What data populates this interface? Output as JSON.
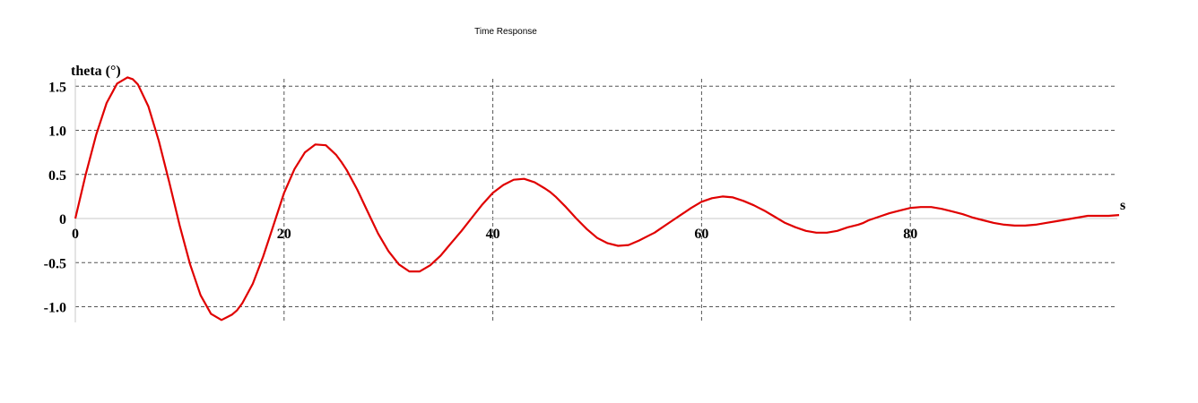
{
  "chart_data": {
    "type": "line",
    "title": "Time Response",
    "ylabel": "theta (°)",
    "xlabel": "s",
    "xlim": [
      0,
      100
    ],
    "ylim": [
      -1.15,
      1.6
    ],
    "x_ticks": [
      0,
      20,
      40,
      60,
      80
    ],
    "x_tick_labels": [
      "0",
      "20",
      "40",
      "60",
      "80"
    ],
    "y_ticks": [
      1.5,
      1.0,
      0.5,
      0,
      -0.5,
      -1.0
    ],
    "y_tick_labels": [
      "1.5",
      "1.0",
      "0.5",
      "0",
      "-0.5",
      "-1.0"
    ],
    "grid": true,
    "series": [
      {
        "color": "#e00000",
        "x": [
          0,
          1,
          2,
          3,
          4,
          5,
          5.5,
          6,
          7,
          8,
          9,
          10,
          11,
          12,
          13,
          14,
          15,
          15.5,
          16,
          17,
          18,
          19,
          20,
          21,
          22,
          23,
          24,
          25,
          25.5,
          26,
          27,
          28,
          29,
          30,
          31,
          32,
          33,
          34,
          35,
          35.5,
          36,
          37,
          38,
          39,
          40,
          41,
          42,
          43,
          44,
          45,
          45.5,
          46,
          47,
          48,
          49,
          50,
          51,
          52,
          53,
          54,
          55,
          55.5,
          56,
          57,
          58,
          59,
          60,
          61,
          62,
          63,
          64,
          65,
          65.5,
          66,
          67,
          68,
          69,
          70,
          71,
          72,
          73,
          74,
          75,
          75.5,
          76,
          77,
          78,
          79,
          80,
          81,
          82,
          83,
          84,
          85,
          85.5,
          86,
          87,
          88,
          89,
          90,
          91,
          92,
          93,
          94,
          95,
          95.5,
          96,
          97,
          98,
          99,
          100
        ],
        "y": [
          0,
          0.5,
          0.95,
          1.31,
          1.53,
          1.6,
          1.58,
          1.52,
          1.27,
          0.88,
          0.41,
          -0.08,
          -0.52,
          -0.87,
          -1.08,
          -1.15,
          -1.09,
          -1.04,
          -0.96,
          -0.74,
          -0.43,
          -0.07,
          0.29,
          0.56,
          0.75,
          0.84,
          0.83,
          0.72,
          0.64,
          0.55,
          0.33,
          0.08,
          -0.17,
          -0.37,
          -0.52,
          -0.6,
          -0.6,
          -0.53,
          -0.42,
          -0.35,
          -0.28,
          -0.14,
          0.01,
          0.16,
          0.29,
          0.38,
          0.44,
          0.45,
          0.41,
          0.34,
          0.3,
          0.25,
          0.13,
          0.0,
          -0.12,
          -0.22,
          -0.28,
          -0.31,
          -0.3,
          -0.25,
          -0.19,
          -0.16,
          -0.12,
          -0.04,
          0.04,
          0.12,
          0.19,
          0.23,
          0.25,
          0.24,
          0.2,
          0.15,
          0.12,
          0.09,
          0.02,
          -0.05,
          -0.1,
          -0.14,
          -0.16,
          -0.16,
          -0.14,
          -0.1,
          -0.07,
          -0.05,
          -0.02,
          0.02,
          0.06,
          0.09,
          0.12,
          0.13,
          0.13,
          0.11,
          0.08,
          0.05,
          0.03,
          0.01,
          -0.02,
          -0.05,
          -0.07,
          -0.08,
          -0.08,
          -0.07,
          -0.05,
          -0.03,
          -0.01,
          0.0,
          0.01,
          0.03,
          0.03,
          0.03,
          0.04
        ]
      }
    ]
  }
}
